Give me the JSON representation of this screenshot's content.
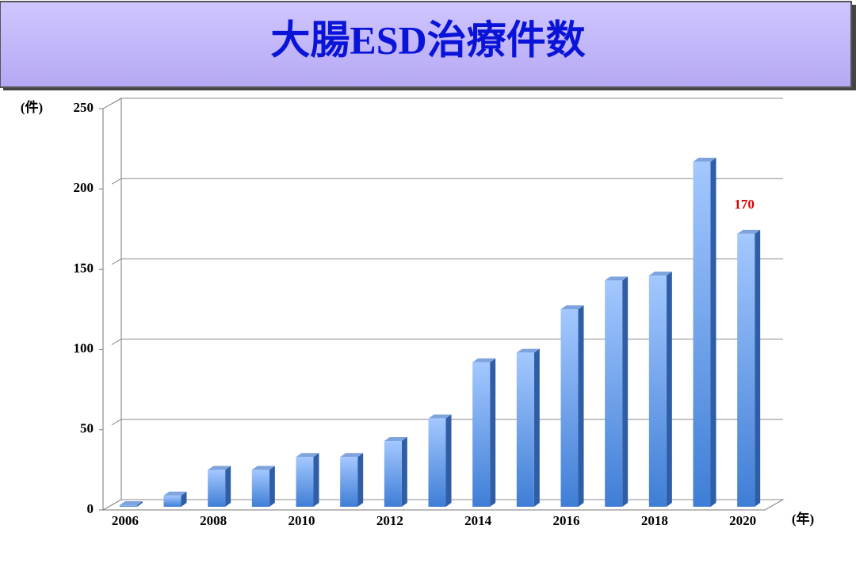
{
  "chart_data": {
    "type": "bar3d",
    "title": "大腸ESD治療件数",
    "y_label": "(件)",
    "x_label": "(年)",
    "categories": [
      "2006",
      null,
      "2008",
      null,
      "2010",
      null,
      "2012",
      null,
      "2014",
      null,
      "2016",
      null,
      "2018",
      null,
      "2020"
    ],
    "values": [
      1,
      7,
      23,
      23,
      31,
      31,
      41,
      55,
      90,
      96,
      123,
      141,
      144,
      215,
      170
    ],
    "color": "#4a86dc",
    "ylim": [
      0,
      250
    ],
    "yticks": [
      0,
      50,
      100,
      150,
      200,
      250
    ],
    "grid": true,
    "value_label_last": true,
    "value_label_color": "#e00000"
  }
}
